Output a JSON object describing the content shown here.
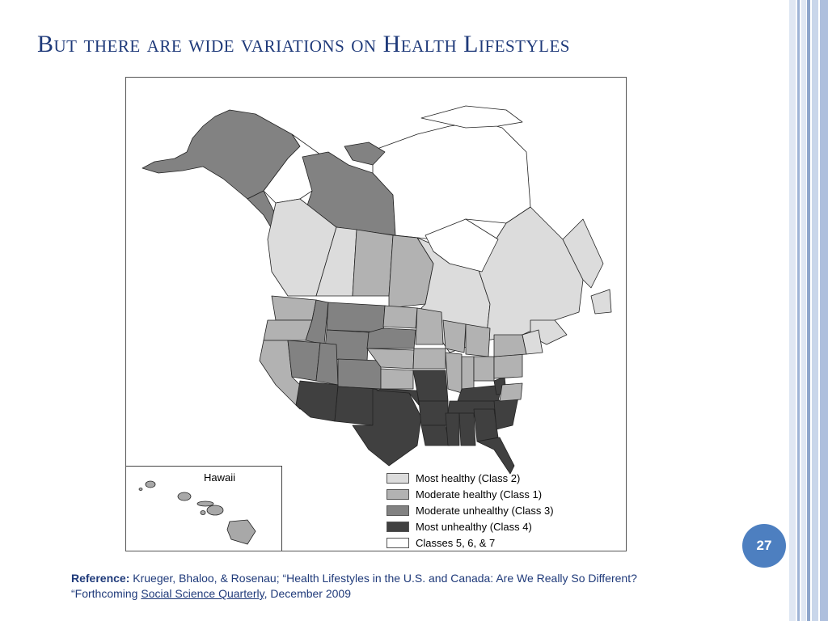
{
  "slide": {
    "title": "But there are wide variations on Health Lifestyles",
    "page_number": "27"
  },
  "map": {
    "inset_label": "Hawaii",
    "legend": [
      {
        "label": "Most healthy (Class 2)",
        "color": "#dcdcdc"
      },
      {
        "label": "Moderate healthy (Class 1)",
        "color": "#b2b2b2"
      },
      {
        "label": "Moderate unhealthy (Class 3)",
        "color": "#828282"
      },
      {
        "label": "Most unhealthy (Class 4)",
        "color": "#404040"
      },
      {
        "label": "Classes 5, 6, & 7",
        "color": "#ffffff"
      }
    ]
  },
  "reference": {
    "prefix": "Reference:",
    "line1_text": " Krueger, Bhaloo, & Rosenau;  “Health Lifestyles in the U.S. and Canada: Are We Really So Different?",
    "line2_start": "“Forthcoming ",
    "journal": "Social Science Quarterly",
    "line2_end": ", December 2009"
  },
  "colors": {
    "title": "#1f3a7a",
    "badge": "#4d7fc0",
    "border_light": "#c9d6ea",
    "border_dark": "#8ea6cc"
  }
}
